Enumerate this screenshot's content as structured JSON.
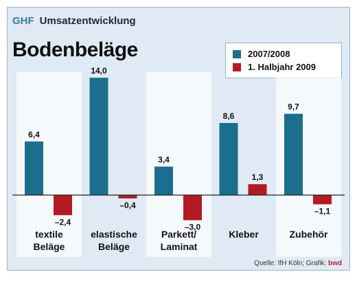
{
  "header": {
    "brand": "GHF",
    "subtitle": "Umsatzentwicklung"
  },
  "source": {
    "text": "Quelle: IfH Köln; Grafik:",
    "brand": "bwd"
  },
  "colors": {
    "series_1": "#1c6e8e",
    "series_2": "#b31b24",
    "highlight_panel": "#ffffff"
  },
  "chart_data": {
    "type": "bar",
    "title": "Bodenbeläge",
    "categories": [
      [
        "textile",
        "Beläge"
      ],
      [
        "elastische",
        "Beläge"
      ],
      [
        "Parkett/",
        "Laminat"
      ],
      [
        "Kleber"
      ],
      [
        "Zubehör"
      ]
    ],
    "series": [
      {
        "name": "2007/2008",
        "values": [
          6.4,
          14.0,
          3.4,
          8.6,
          9.7
        ],
        "labels": [
          "6,4",
          "14,0",
          "3,4",
          "8,6",
          "9,7"
        ]
      },
      {
        "name": "1. Halbjahr 2009",
        "values": [
          -2.4,
          -0.4,
          -3.0,
          1.3,
          -1.1
        ],
        "labels": [
          "–2,4",
          "–0,4",
          "–3,0",
          "1,3",
          "–1,1"
        ]
      }
    ],
    "ylim": [
      -3.0,
      14.0
    ],
    "legend_position": "top-right",
    "grid": false
  }
}
